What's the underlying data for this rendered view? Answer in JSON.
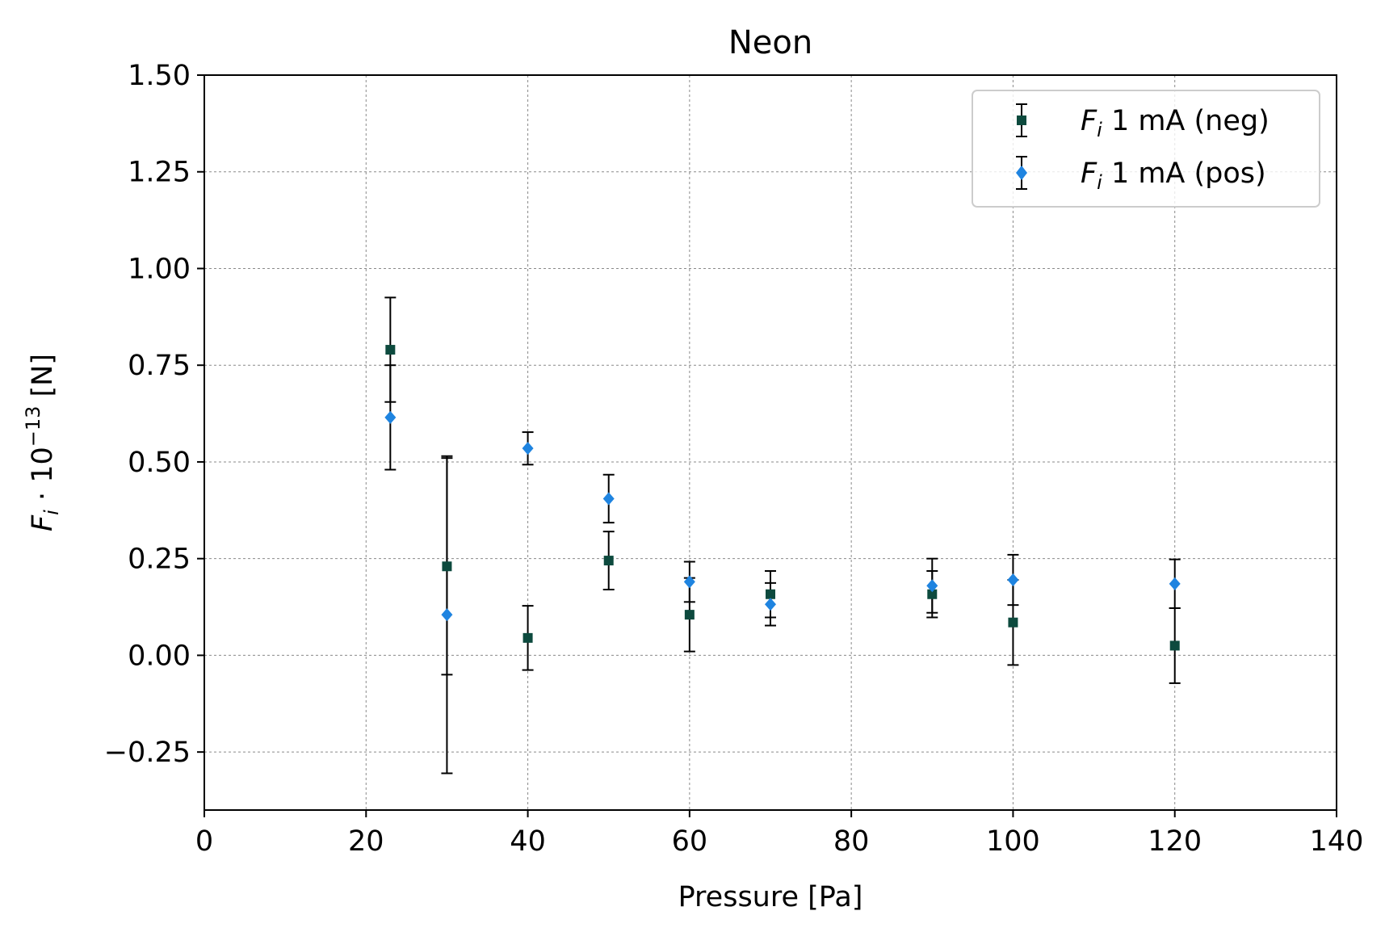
{
  "chart_data": {
    "type": "scatter",
    "title": "Neon",
    "xlabel": "Pressure [Pa]",
    "ylabel": {
      "base": "F",
      "sub": "i",
      "middle": " · 10",
      "sup": "−13",
      "unit": " [N]"
    },
    "xlim": [
      0,
      140
    ],
    "ylim": [
      -0.4,
      1.5
    ],
    "xticks": [
      0,
      20,
      40,
      60,
      80,
      100,
      120,
      140
    ],
    "yticks": [
      -0.25,
      0,
      0.25,
      0.5,
      0.75,
      1.0,
      1.25,
      1.5
    ],
    "xtick_labels": [
      "0",
      "20",
      "40",
      "60",
      "80",
      "100",
      "120",
      "140"
    ],
    "ytick_labels": [
      "−0.25",
      "0.00",
      "0.25",
      "0.50",
      "0.75",
      "1.00",
      "1.25",
      "1.50"
    ],
    "grid": true,
    "legend_position": "top-right",
    "series": [
      {
        "name": "F_i 1 mA (neg)",
        "legend": {
          "base": "F",
          "sub": "i",
          "rest": " 1 mA (neg)"
        },
        "marker": "square",
        "color": "#0d4a3e",
        "points": [
          {
            "x": 23,
            "y": 0.79,
            "yerr": 0.135
          },
          {
            "x": 30,
            "y": 0.23,
            "yerr": 0.28
          },
          {
            "x": 40,
            "y": 0.045,
            "yerr": 0.083
          },
          {
            "x": 50,
            "y": 0.245,
            "yerr": 0.075
          },
          {
            "x": 60,
            "y": 0.105,
            "yerr": 0.095
          },
          {
            "x": 70,
            "y": 0.158,
            "yerr": 0.06
          },
          {
            "x": 90,
            "y": 0.158,
            "yerr": 0.06
          },
          {
            "x": 100,
            "y": 0.085,
            "yerr": 0.11
          },
          {
            "x": 120,
            "y": 0.025,
            "yerr": 0.097
          }
        ]
      },
      {
        "name": "F_i 1 mA (pos)",
        "legend": {
          "base": "F",
          "sub": "i",
          "rest": " 1 mA (pos)"
        },
        "marker": "diamond",
        "color": "#1f84e0",
        "points": [
          {
            "x": 23,
            "y": 0.615,
            "yerr": 0.135
          },
          {
            "x": 30,
            "y": 0.105,
            "yerr": 0.41
          },
          {
            "x": 40,
            "y": 0.535,
            "yerr": 0.042
          },
          {
            "x": 50,
            "y": 0.405,
            "yerr": 0.062
          },
          {
            "x": 60,
            "y": 0.19,
            "yerr": 0.052
          },
          {
            "x": 70,
            "y": 0.132,
            "yerr": 0.055
          },
          {
            "x": 90,
            "y": 0.18,
            "yerr": 0.07
          },
          {
            "x": 100,
            "y": 0.195,
            "yerr": 0.065
          },
          {
            "x": 120,
            "y": 0.185,
            "yerr": 0.063
          }
        ]
      }
    ],
    "errorbar_color": "#000000"
  }
}
